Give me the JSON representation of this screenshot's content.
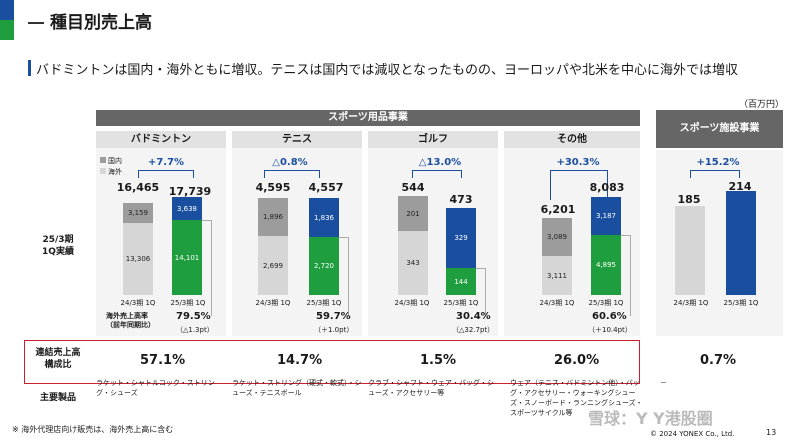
{
  "header": {
    "title": "種目別売上高",
    "subtitle": "バドミントンは国内・海外ともに増収。テニスは国内では減収となったものの、ヨーロッパや北米を中心に海外では増収",
    "unit": "（百万円）"
  },
  "segments": {
    "sports_goods": "スポーツ用品事業",
    "facility": "スポーツ施設事業"
  },
  "legend": {
    "domestic": "国内",
    "overseas": "海外"
  },
  "row_labels": {
    "q1_results": "25/3期\n1Q実績",
    "overseas_ratio": "海外売上高率\n（前年同期比）",
    "composition": "連結売上高\n構成比",
    "products": "主要製品"
  },
  "x_labels": {
    "prev": "24/3期 1Q",
    "curr": "25/3期 1Q"
  },
  "categories": [
    {
      "name": "バドミントン",
      "growth": "+7.7%",
      "prev_total": "16,465",
      "curr_total": "17,739",
      "prev_overseas": "3,159",
      "prev_domestic": "13,306",
      "curr_domestic_top": "3,638",
      "curr_overseas": "14,101",
      "overseas_ratio": "79.5%",
      "ratio_change": "（△1.3pt）",
      "composition": "57.1%",
      "products": "ラケット・シャトルコック・ストリング・シューズ"
    },
    {
      "name": "テニス",
      "growth": "△0.8%",
      "prev_total": "4,595",
      "curr_total": "4,557",
      "prev_overseas": "1,896",
      "prev_domestic": "2,699",
      "curr_domestic_top": "1,836",
      "curr_overseas": "2,720",
      "overseas_ratio": "59.7%",
      "ratio_change": "（＋1.0pt）",
      "composition": "14.7%",
      "products": "ラケット・ストリング（硬式・軟式）・シューズ・テニスボール"
    },
    {
      "name": "ゴルフ",
      "growth": "△13.0%",
      "prev_total": "544",
      "curr_total": "473",
      "prev_overseas": "201",
      "prev_domestic": "343",
      "curr_domestic_top": "329",
      "curr_overseas": "144",
      "overseas_ratio": "30.4%",
      "ratio_change": "（△32.7pt）",
      "composition": "1.5%",
      "products": "クラブ・シャフト・ウェア・バッグ・シューズ・アクセサリー等"
    },
    {
      "name": "その他",
      "growth": "+30.3%",
      "prev_total": "6,201",
      "curr_total": "8,083",
      "prev_overseas": "3,089",
      "prev_domestic": "3,111",
      "curr_domestic_top": "3,187",
      "curr_overseas": "4,895",
      "overseas_ratio": "60.6%",
      "ratio_change": "（＋10.4pt）",
      "composition": "26.0%",
      "products": "ウェア（テニス・バドミントン他）・バッグ・アクセサリー・ウォーキングシューズ・スノーボード・ランニングシューズ・スポーツサイクル等"
    }
  ],
  "facility": {
    "growth": "+15.2%",
    "prev_total": "185",
    "curr_total": "214",
    "composition": "0.7%",
    "products": "－"
  },
  "footer": {
    "note": "※ 海外代理店向け販売は、海外売上高に含む",
    "watermark": "雪球：Y Y港股圈",
    "copyright": "© 2024 YONEX Co., Ltd.",
    "page": "13"
  },
  "colors": {
    "blue": "#1a4fa0",
    "green": "#1e9e3e",
    "gray_dark": "#9c9c9c",
    "gray_light": "#d6d6d6",
    "red": "#c8202e"
  }
}
